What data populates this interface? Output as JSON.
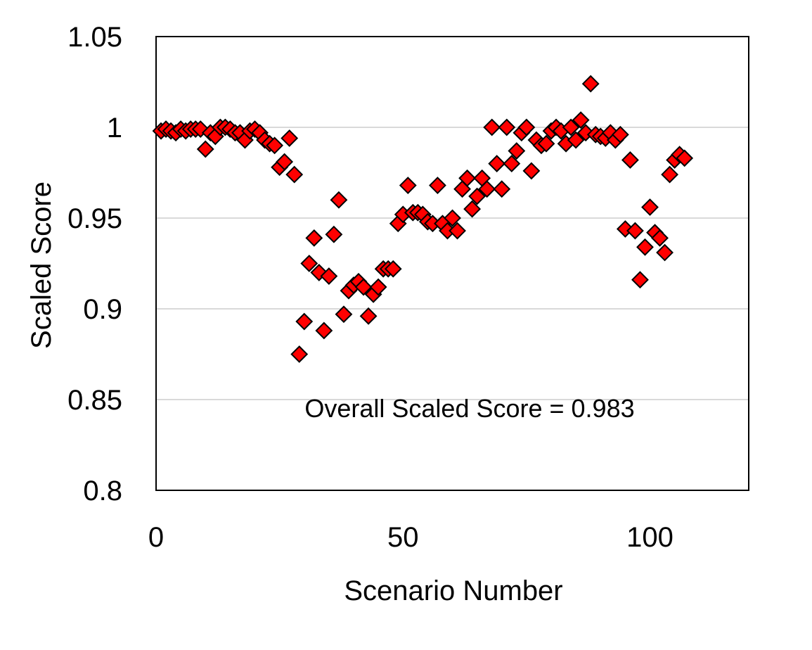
{
  "chart_data": {
    "type": "scatter",
    "title": "",
    "xlabel": "Scenario Number",
    "ylabel": "Scaled Score",
    "xlim": [
      0,
      120
    ],
    "ylim": [
      0.8,
      1.05
    ],
    "xticks": [
      0,
      50,
      100
    ],
    "xtick_labels": [
      "0",
      "50",
      "100"
    ],
    "yticks": [
      0.8,
      0.85,
      0.9,
      0.95,
      1.0,
      1.05
    ],
    "ytick_labels": [
      "0.8",
      "0.85",
      "0.9",
      "0.95",
      "1",
      "1.05"
    ],
    "grid": "horizontal",
    "legend": "none",
    "annotation": "Overall Scaled Score = 0.983",
    "marker": {
      "shape": "diamond",
      "fill": "#ff0000",
      "stroke": "#000000"
    },
    "points": [
      [
        1,
        0.998
      ],
      [
        2,
        0.999
      ],
      [
        3,
        0.998
      ],
      [
        4,
        0.997
      ],
      [
        5,
        0.999
      ],
      [
        6,
        0.998
      ],
      [
        7,
        0.999
      ],
      [
        8,
        0.999
      ],
      [
        9,
        0.999
      ],
      [
        10,
        0.988
      ],
      [
        11,
        0.997
      ],
      [
        12,
        0.995
      ],
      [
        13,
        1.0
      ],
      [
        14,
        1.0
      ],
      [
        15,
        0.999
      ],
      [
        16,
        0.997
      ],
      [
        17,
        0.997
      ],
      [
        18,
        0.993
      ],
      [
        19,
        0.998
      ],
      [
        20,
        0.999
      ],
      [
        21,
        0.997
      ],
      [
        22,
        0.993
      ],
      [
        23,
        0.991
      ],
      [
        24,
        0.99
      ],
      [
        25,
        0.978
      ],
      [
        26,
        0.981
      ],
      [
        27,
        0.994
      ],
      [
        28,
        0.974
      ],
      [
        29,
        0.875
      ],
      [
        30,
        0.893
      ],
      [
        31,
        0.925
      ],
      [
        32,
        0.939
      ],
      [
        33,
        0.92
      ],
      [
        34,
        0.888
      ],
      [
        35,
        0.918
      ],
      [
        36,
        0.941
      ],
      [
        37,
        0.96
      ],
      [
        38,
        0.897
      ],
      [
        39,
        0.91
      ],
      [
        40,
        0.913
      ],
      [
        41,
        0.915
      ],
      [
        42,
        0.912
      ],
      [
        43,
        0.896
      ],
      [
        44,
        0.908
      ],
      [
        45,
        0.912
      ],
      [
        46,
        0.922
      ],
      [
        47,
        0.922
      ],
      [
        48,
        0.922
      ],
      [
        49,
        0.947
      ],
      [
        50,
        0.952
      ],
      [
        51,
        0.968
      ],
      [
        52,
        0.953
      ],
      [
        53,
        0.953
      ],
      [
        54,
        0.952
      ],
      [
        55,
        0.948
      ],
      [
        56,
        0.947
      ],
      [
        57,
        0.968
      ],
      [
        58,
        0.947
      ],
      [
        59,
        0.943
      ],
      [
        60,
        0.95
      ],
      [
        61,
        0.943
      ],
      [
        62,
        0.966
      ],
      [
        63,
        0.972
      ],
      [
        64,
        0.955
      ],
      [
        65,
        0.962
      ],
      [
        66,
        0.972
      ],
      [
        67,
        0.966
      ],
      [
        68,
        1.0
      ],
      [
        69,
        0.98
      ],
      [
        70,
        0.966
      ],
      [
        71,
        1.0
      ],
      [
        72,
        0.98
      ],
      [
        73,
        0.987
      ],
      [
        74,
        0.997
      ],
      [
        75,
        1.0
      ],
      [
        76,
        0.976
      ],
      [
        77,
        0.993
      ],
      [
        78,
        0.99
      ],
      [
        79,
        0.991
      ],
      [
        80,
        0.998
      ],
      [
        81,
        1.0
      ],
      [
        82,
        0.998
      ],
      [
        83,
        0.991
      ],
      [
        84,
        1.0
      ],
      [
        85,
        0.993
      ],
      [
        86,
        1.004
      ],
      [
        87,
        0.997
      ],
      [
        88,
        1.024
      ],
      [
        89,
        0.996
      ],
      [
        90,
        0.995
      ],
      [
        91,
        0.994
      ],
      [
        92,
        0.997
      ],
      [
        93,
        0.993
      ],
      [
        94,
        0.996
      ],
      [
        95,
        0.944
      ],
      [
        96,
        0.982
      ],
      [
        97,
        0.943
      ],
      [
        98,
        0.916
      ],
      [
        99,
        0.934
      ],
      [
        100,
        0.956
      ],
      [
        101,
        0.942
      ],
      [
        102,
        0.939
      ],
      [
        103,
        0.931
      ],
      [
        104,
        0.974
      ],
      [
        105,
        0.982
      ],
      [
        106,
        0.985
      ],
      [
        107,
        0.983
      ]
    ]
  }
}
